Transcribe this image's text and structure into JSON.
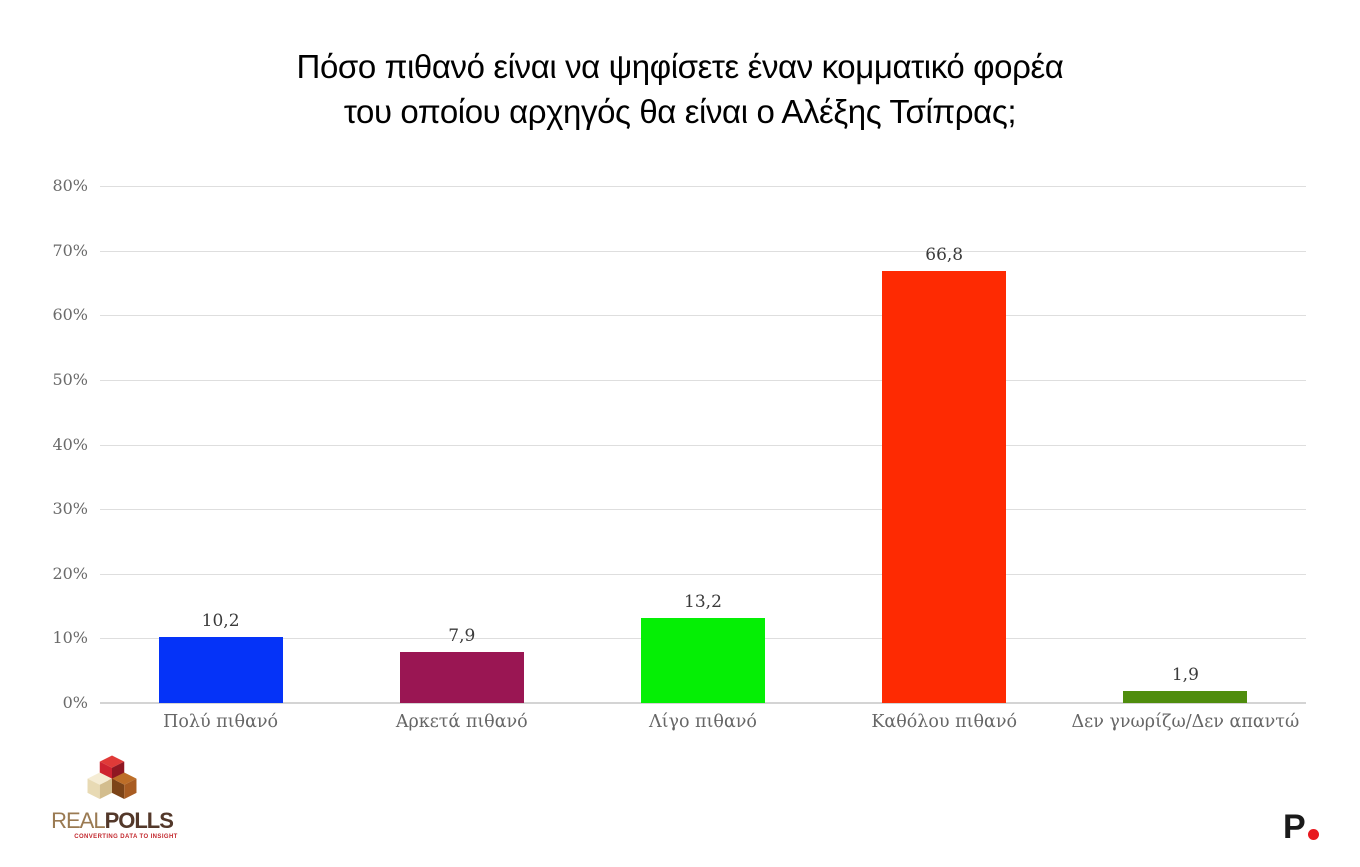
{
  "title": {
    "line1": "Πόσο πιθανό είναι να ψηφίσετε έναν κομματικό φορέα",
    "line2": "του οποίου αρχηγός θα είναι ο Αλέξης Τσίπρας;"
  },
  "chart_data": {
    "type": "bar",
    "title": "Πόσο πιθανό είναι να ψηφίσετε έναν κομματικό φορέα του οποίου αρχηγός θα είναι ο Αλέξης Τσίπρας;",
    "categories": [
      "Πολύ πιθανό",
      "Αρκετά πιθανό",
      "Λίγο πιθανό",
      "Καθόλου πιθανό",
      "Δεν γνωρίζω/Δεν απαντώ"
    ],
    "values": [
      10.2,
      7.9,
      13.2,
      66.8,
      1.9
    ],
    "value_labels": [
      "10,2",
      "7,9",
      "13,2",
      "66,8",
      "1,9"
    ],
    "bar_colors": [
      "#0533f8",
      "#9a1653",
      "#05ef05",
      "#fe2a02",
      "#4f8d0d"
    ],
    "xlabel": "",
    "ylabel": "",
    "ylim": [
      0,
      80
    ],
    "ytick_step": 10,
    "ytick_labels": [
      "0%",
      "10%",
      "20%",
      "30%",
      "40%",
      "50%",
      "60%",
      "70%",
      "80%"
    ],
    "grid": true,
    "legend": false
  },
  "branding": {
    "logo_real": "REAL",
    "logo_polls": "POLLS",
    "logo_tagline": "CONVERTING DATA TO INSIGHT",
    "publisher_mark": "P"
  },
  "colors": {
    "grid": "#dedede",
    "axis_text": "#6a6a6a",
    "value_text": "#3b3b3b",
    "title_text": "#000000",
    "publisher_dot": "#e8191f"
  }
}
